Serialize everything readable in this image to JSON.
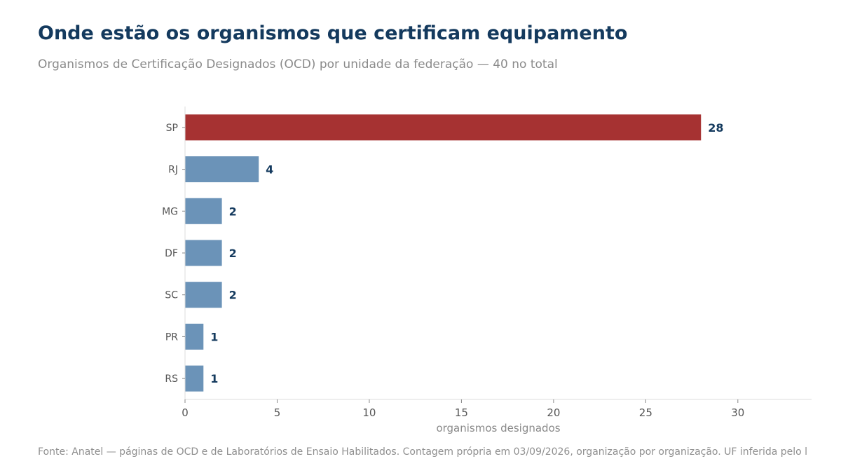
{
  "header": {
    "title": "Onde estão os organismos que certificam equipamento",
    "subtitle": "Organismos de Certificação Designados (OCD) por unidade da federação — 40 no total"
  },
  "footer": {
    "source": "Fonte: Anatel — páginas de OCD e de Laboratórios de Ensaio Habilitados. Contagem própria em 03/09/2026, organização por organização. UF inferida pelo l"
  },
  "chart_data": {
    "type": "bar",
    "orientation": "horizontal",
    "categories": [
      "SP",
      "RJ",
      "MG",
      "DF",
      "SC",
      "PR",
      "RS"
    ],
    "values": [
      28,
      4,
      2,
      2,
      2,
      1,
      1
    ],
    "data_labels": [
      "28",
      "4",
      "2",
      "2",
      "2",
      "1",
      "1"
    ],
    "xlabel": "organismos designados",
    "ylabel": "",
    "xlim": [
      0,
      34
    ],
    "xticks": [
      0,
      5,
      10,
      15,
      20,
      25,
      30
    ],
    "xtick_labels": [
      "0",
      "5",
      "10",
      "15",
      "20",
      "25",
      "30"
    ],
    "grid": false,
    "colors": {
      "highlight": "#a63232",
      "default": "#6b93b8"
    },
    "highlight_category": "SP"
  }
}
